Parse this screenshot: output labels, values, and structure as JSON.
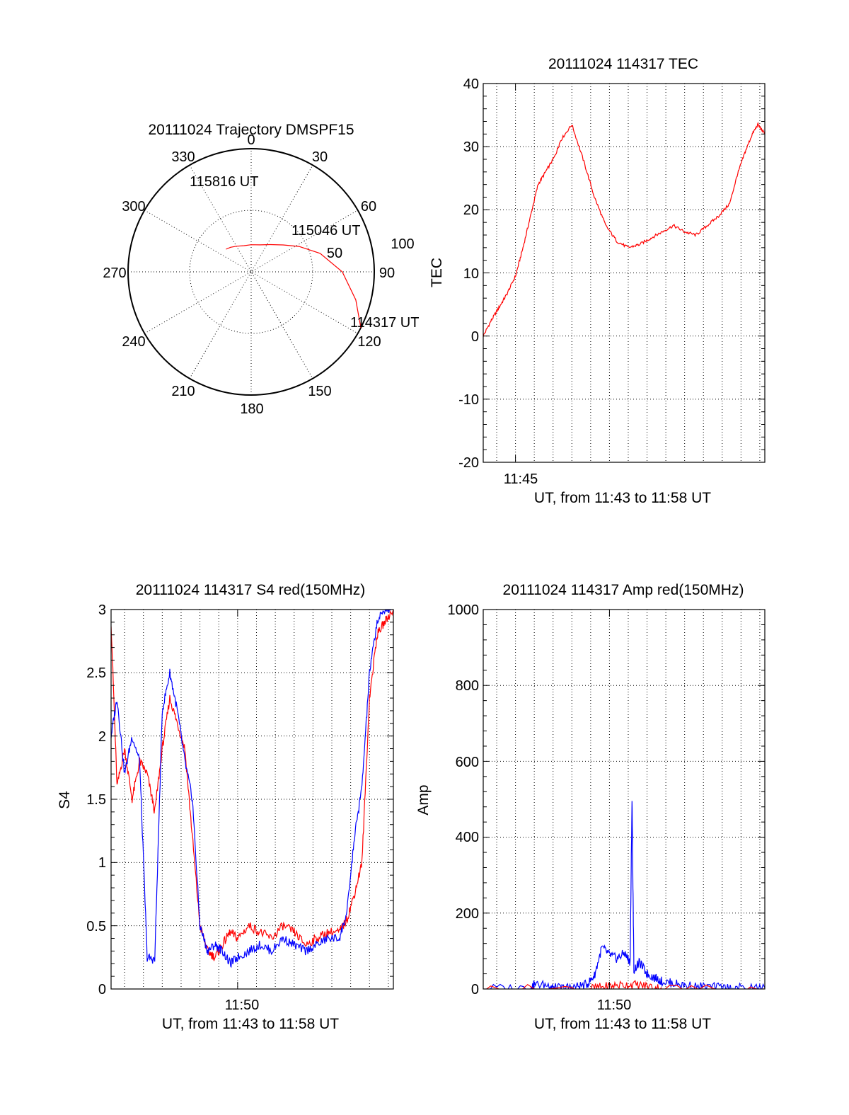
{
  "chart_data": [
    {
      "type": "polar",
      "title": "20111024 Trajectory DMSPF15",
      "angle_labels": [
        "0",
        "30",
        "60",
        "90",
        "120",
        "150",
        "180",
        "210",
        "240",
        "270",
        "300",
        "330"
      ],
      "radial_labels": [
        "50",
        "100"
      ],
      "rlim": [
        0,
        100
      ],
      "grid": true,
      "series": [
        {
          "color": "#ff0000",
          "points": [
            {
              "az": 117,
              "el": 0
            },
            {
              "az": 105,
              "el": 12
            },
            {
              "az": 90,
              "el": 26
            },
            {
              "az": 75,
              "el": 42
            },
            {
              "az": 62,
              "el": 56
            },
            {
              "az": 50,
              "el": 66
            },
            {
              "az": 35,
              "el": 73
            },
            {
              "az": 18,
              "el": 77
            },
            {
              "az": 0,
              "el": 78
            },
            {
              "az": -15,
              "el": 78
            },
            {
              "az": -30,
              "el": 76
            },
            {
              "az": -40,
              "el": 74
            },
            {
              "az": -48,
              "el": 72.5
            }
          ]
        }
      ],
      "annotations": [
        {
          "text": "115816 UT",
          "az": -40,
          "el": 70
        },
        {
          "text": "115046 UT",
          "az": 54,
          "el": 48
        },
        {
          "text": "114317 UT",
          "az": 113,
          "el": -15
        }
      ]
    },
    {
      "type": "line",
      "title": "20111024 114317 TEC",
      "xlabel": "UT, from 11:43 to 11:58 UT",
      "ylabel": "TEC",
      "x_ticks": [
        "11:45"
      ],
      "y_ticks": [
        "-20",
        "-10",
        "0",
        "10",
        "20",
        "30",
        "40"
      ],
      "xlim": [
        "11:43:17",
        "11:58:16"
      ],
      "ylim": [
        -20,
        40
      ],
      "grid": true,
      "series": [
        {
          "color": "#ff0000",
          "x": [
            "11:43:17",
            "11:43:43",
            "11:44:07",
            "11:44:31",
            "11:45:00",
            "11:45:24",
            "11:45:48",
            "11:46:12",
            "11:46:36",
            "11:47:06",
            "11:47:24",
            "11:48:00",
            "11:48:36",
            "11:49:12",
            "11:49:48",
            "11:50:24",
            "11:51:00",
            "11:51:36",
            "11:52:12",
            "11:52:48",
            "11:53:24",
            "11:54:00",
            "11:54:36",
            "11:55:12",
            "11:55:48",
            "11:56:24",
            "11:56:48",
            "11:57:12",
            "11:57:36",
            "11:57:54",
            "11:58:16"
          ],
          "y": [
            0,
            2.5,
            4.5,
            6.5,
            9.5,
            14,
            19,
            24,
            26,
            28.5,
            31,
            33.5,
            28,
            22,
            17.5,
            15,
            14,
            14.5,
            15.5,
            16.5,
            17.5,
            16.5,
            16,
            17.5,
            19,
            21,
            25.5,
            29,
            32,
            33.5,
            32
          ]
        }
      ]
    },
    {
      "type": "line",
      "title": "20111024 114317 S4 red(150MHz)",
      "xlabel": "UT, from 11:43 to 11:58 UT",
      "ylabel": "S4",
      "x_ticks": [
        "11:50"
      ],
      "y_ticks": [
        "0",
        "0.5",
        "1",
        "1.5",
        "2",
        "2.5",
        "3"
      ],
      "xlim": [
        "11:43:17",
        "11:58:16"
      ],
      "ylim": [
        0,
        3
      ],
      "grid": true,
      "series": [
        {
          "color": "#ff0000",
          "x": [
            "11:43:17",
            "11:43:36",
            "11:44:00",
            "11:44:24",
            "11:44:48",
            "11:45:12",
            "11:45:36",
            "11:46:00",
            "11:46:24",
            "11:46:48",
            "11:47:12",
            "11:47:36",
            "11:48:00",
            "11:48:24",
            "11:48:48",
            "11:49:12",
            "11:49:36",
            "11:50:00",
            "11:50:36",
            "11:51:12",
            "11:51:48",
            "11:52:24",
            "11:53:00",
            "11:53:36",
            "11:54:12",
            "11:54:48",
            "11:55:24",
            "11:55:48",
            "11:56:12",
            "11:56:36",
            "11:57:00",
            "11:57:24",
            "11:57:48",
            "11:58:16"
          ],
          "y": [
            2.9,
            1.6,
            1.9,
            1.5,
            1.8,
            1.7,
            1.4,
            1.9,
            2.3,
            2.1,
            1.9,
            1.2,
            0.5,
            0.3,
            0.25,
            0.35,
            0.45,
            0.4,
            0.5,
            0.45,
            0.4,
            0.5,
            0.45,
            0.35,
            0.4,
            0.45,
            0.45,
            0.55,
            0.75,
            1.0,
            2.3,
            2.8,
            2.9,
            3.0
          ]
        },
        {
          "color": "#0000ff",
          "x": [
            "11:43:17",
            "11:43:36",
            "11:44:00",
            "11:44:24",
            "11:44:48",
            "11:45:12",
            "11:45:36",
            "11:46:00",
            "11:46:24",
            "11:46:48",
            "11:47:12",
            "11:47:36",
            "11:48:00",
            "11:48:24",
            "11:48:48",
            "11:49:12",
            "11:49:36",
            "11:50:00",
            "11:50:36",
            "11:51:12",
            "11:51:48",
            "11:52:24",
            "11:53:00",
            "11:53:36",
            "11:54:12",
            "11:54:48",
            "11:55:24",
            "11:55:48",
            "11:56:12",
            "11:56:36",
            "11:57:00",
            "11:57:24",
            "11:57:48",
            "11:58:16"
          ],
          "y": [
            2.0,
            2.3,
            1.7,
            2.0,
            1.8,
            0.25,
            0.23,
            2.2,
            2.5,
            2.2,
            1.8,
            1.5,
            0.5,
            0.3,
            0.35,
            0.3,
            0.2,
            0.25,
            0.3,
            0.35,
            0.3,
            0.4,
            0.35,
            0.3,
            0.35,
            0.4,
            0.4,
            0.6,
            1.2,
            1.6,
            2.5,
            2.9,
            3.0,
            3.0
          ]
        }
      ]
    },
    {
      "type": "line",
      "title": "20111024 114317 Amp red(150MHz)",
      "xlabel": "UT, from 11:43 to 11:58 UT",
      "ylabel": "Amp",
      "x_ticks": [
        "11:50"
      ],
      "y_ticks": [
        "0",
        "200",
        "400",
        "600",
        "800",
        "1000"
      ],
      "xlim": [
        "11:43:17",
        "11:58:16"
      ],
      "ylim": [
        0,
        1000
      ],
      "grid": true,
      "series": [
        {
          "color": "#0000ff",
          "x": [
            "11:43:17",
            "11:45:48",
            "11:46:00",
            "11:46:48",
            "11:47:00",
            "11:47:36",
            "11:48:12",
            "11:48:48",
            "11:49:12",
            "11:49:36",
            "11:50:00",
            "11:50:24",
            "11:50:48",
            "11:51:06",
            "11:51:12",
            "11:51:18",
            "11:51:36",
            "11:52:00",
            "11:52:24",
            "11:52:48",
            "11:53:24",
            "11:54:00",
            "11:55:00",
            "11:56:00",
            "11:57:00",
            "11:58:16"
          ],
          "y": [
            2,
            3,
            12,
            10,
            3,
            3,
            6,
            12,
            35,
            110,
            90,
            80,
            95,
            70,
            500,
            50,
            70,
            40,
            30,
            20,
            15,
            10,
            6,
            4,
            3,
            3
          ]
        },
        {
          "color": "#ff0000",
          "x": [
            "11:43:17",
            "11:48:48",
            "11:49:36",
            "11:50:24",
            "11:51:12",
            "11:52:00",
            "11:52:48",
            "11:58:16"
          ],
          "y": [
            0,
            1,
            5,
            10,
            12,
            8,
            2,
            0
          ]
        }
      ]
    }
  ]
}
